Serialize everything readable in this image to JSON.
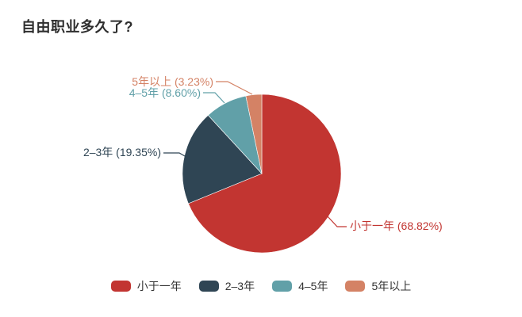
{
  "title": "自由职业多久了?",
  "chart_data": {
    "type": "pie",
    "title": "自由职业多久了?",
    "categories": [
      "小于一年",
      "2–3年",
      "4–5年",
      "5年以上"
    ],
    "values": [
      68.82,
      19.35,
      8.6,
      3.23
    ],
    "value_unit": "%",
    "labels": [
      "小于一年 (68.82%)",
      "2–3年 (19.35%)",
      "4–5年 (8.60%)",
      "5年以上 (3.23%)"
    ],
    "colors": [
      "#c23531",
      "#2f4554",
      "#61a0a8",
      "#d48265"
    ],
    "start_angle": 90,
    "clockwise": true,
    "legend_position": "bottom",
    "legend_items": [
      "小于一年",
      "2–3年",
      "4–5年",
      "5年以上"
    ]
  }
}
